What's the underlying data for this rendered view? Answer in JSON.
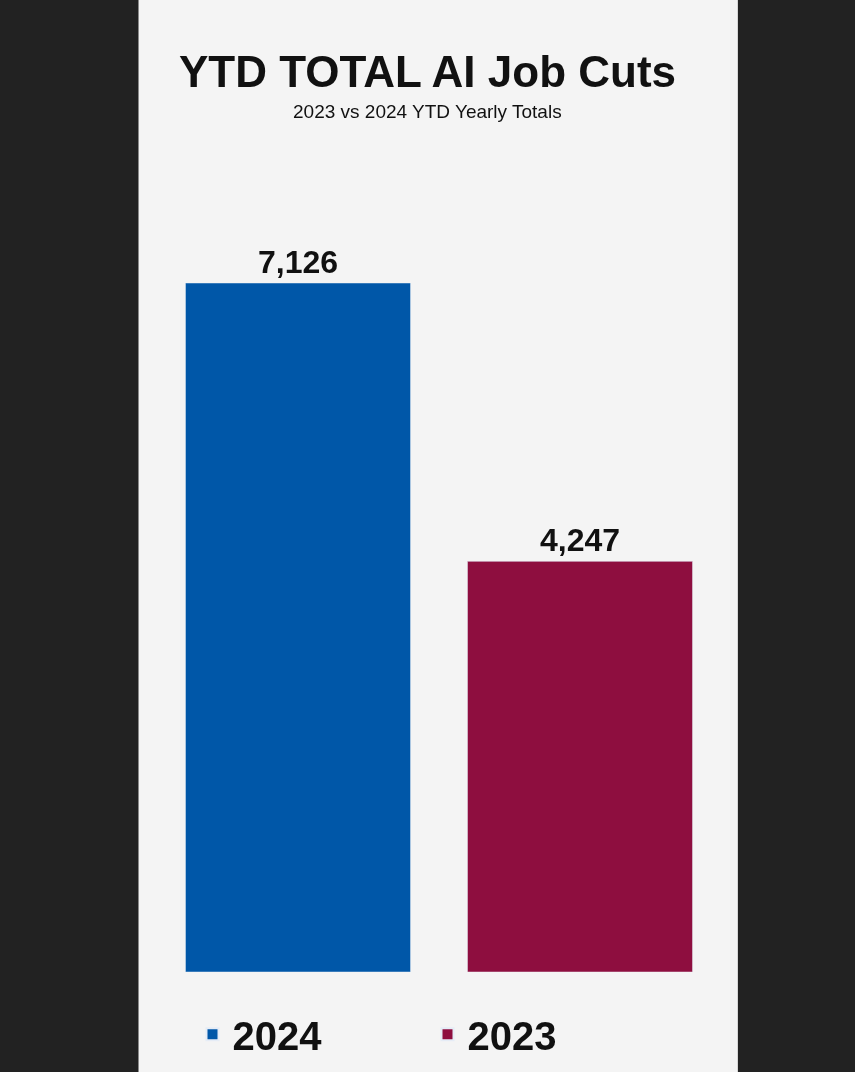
{
  "chart_data": {
    "type": "bar",
    "title": "YTD TOTAL AI Job Cuts",
    "subtitle": "2023 vs 2024 YTD Yearly Totals",
    "categories": [
      null
    ],
    "series": [
      {
        "name": "2024",
        "color": "#0057a8",
        "values": [
          7126
        ],
        "value_labels": [
          "7,126"
        ]
      },
      {
        "name": "2023",
        "color": "#8e0e3f",
        "values": [
          4247
        ],
        "value_labels": [
          "4,247"
        ]
      }
    ],
    "grid": false,
    "legend": "bottom"
  }
}
